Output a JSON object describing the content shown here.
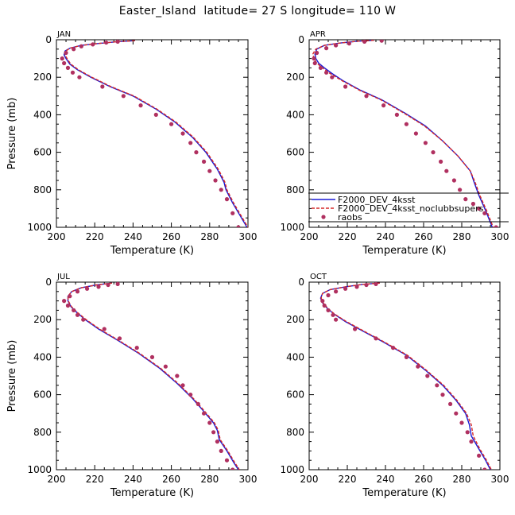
{
  "title": "Easter_Island  latitude= 27 S longitude= 110 W",
  "colors": {
    "series_solid": "#1a1ad6",
    "series_dashed": "#d62828",
    "series_points": "#b03060",
    "axes": "#000000"
  },
  "chart_data": [
    {
      "type": "line",
      "panel": "JAN",
      "xlabel": "Temperature (K)",
      "ylabel": "Pressure (mb)",
      "xlim": [
        200,
        300
      ],
      "ylim": [
        1000,
        0
      ],
      "xticks": [
        200,
        220,
        240,
        260,
        280,
        300
      ],
      "yticks": [
        0,
        200,
        400,
        600,
        800,
        1000
      ],
      "series": [
        {
          "name": "F2000_DEV_4ksst",
          "style": "solid",
          "x": [
            241,
            232,
            222,
            213,
            207,
            204.5,
            204,
            205,
            207,
            211,
            218,
            228,
            240,
            252,
            262,
            271,
            278,
            284,
            287.5,
            288.5,
            292,
            296,
            299.5
          ],
          "y": [
            5,
            10,
            20,
            30,
            45,
            60,
            80,
            100,
            130,
            160,
            200,
            250,
            300,
            370,
            440,
            520,
            600,
            690,
            760,
            800,
            870,
            940,
            1000
          ]
        },
        {
          "name": "F2000_DEV_4ksst_noclubbsupers",
          "style": "dashed",
          "x": [
            241,
            232,
            222,
            213,
            207,
            205,
            204.5,
            205.5,
            207.5,
            211.5,
            218.5,
            228.5,
            240.5,
            252.5,
            262.5,
            271.5,
            278.5,
            284.5,
            288,
            289,
            292.5,
            296.5,
            300
          ],
          "y": [
            5,
            10,
            20,
            30,
            45,
            60,
            80,
            100,
            130,
            160,
            200,
            250,
            300,
            370,
            440,
            520,
            600,
            690,
            760,
            800,
            870,
            940,
            1000
          ]
        },
        {
          "name": "raobs",
          "style": "points",
          "x": [
            232,
            226,
            219,
            213,
            209,
            205,
            203,
            204,
            206,
            208.5,
            212,
            224,
            235,
            244,
            252,
            260,
            266,
            270,
            273,
            277,
            280,
            283,
            286,
            289,
            292,
            295
          ],
          "y": [
            10,
            15,
            25,
            35,
            50,
            70,
            100,
            125,
            150,
            175,
            200,
            250,
            300,
            350,
            400,
            450,
            500,
            550,
            600,
            650,
            700,
            750,
            800,
            850,
            925,
            1000
          ]
        }
      ]
    },
    {
      "type": "line",
      "panel": "APR",
      "xlabel": "Temperature (K)",
      "ylabel": "",
      "xlim": [
        200,
        300
      ],
      "ylim": [
        1000,
        0
      ],
      "xticks": [
        200,
        220,
        240,
        260,
        280,
        300
      ],
      "yticks": [
        0,
        200,
        400,
        600,
        800,
        1000
      ],
      "legend": {
        "placement": "bottom-right",
        "entries": [
          "F2000_DEV_4ksst",
          "F2000_DEV_4ksst_noclubbsupers",
          "raobs"
        ]
      },
      "series": [
        {
          "name": "F2000_DEV_4ksst",
          "style": "solid",
          "x": [
            234,
            225,
            216,
            208,
            204,
            203,
            203.5,
            205,
            208,
            212,
            218,
            227,
            238,
            250,
            261,
            270,
            278,
            284.5,
            286.5,
            289,
            292.5,
            296
          ],
          "y": [
            3,
            8,
            18,
            30,
            50,
            75,
            100,
            125,
            150,
            180,
            220,
            270,
            320,
            390,
            460,
            540,
            620,
            700,
            760,
            830,
            910,
            1000
          ]
        },
        {
          "name": "F2000_DEV_4ksst_noclubbsupers",
          "style": "dashed",
          "x": [
            234,
            225,
            216,
            208,
            203.5,
            202,
            202.5,
            204,
            207,
            211,
            217.5,
            226.5,
            237.5,
            249.5,
            260.5,
            270,
            278,
            284.5,
            287,
            289.5,
            293,
            296.5
          ],
          "y": [
            3,
            8,
            18,
            30,
            50,
            75,
            100,
            125,
            150,
            180,
            220,
            270,
            320,
            390,
            460,
            540,
            620,
            700,
            760,
            830,
            910,
            1000
          ]
        },
        {
          "name": "raobs",
          "style": "points",
          "x": [
            238,
            229,
            221,
            214,
            209,
            204,
            202.5,
            203,
            206,
            209,
            212,
            219,
            230,
            239,
            246,
            251,
            256,
            261,
            265,
            269,
            272,
            276,
            279,
            282,
            286,
            289,
            292,
            298
          ],
          "y": [
            5,
            10,
            20,
            30,
            45,
            70,
            100,
            125,
            150,
            175,
            200,
            250,
            300,
            350,
            400,
            450,
            500,
            550,
            600,
            650,
            700,
            750,
            800,
            850,
            875,
            900,
            925,
            1000
          ]
        }
      ]
    },
    {
      "type": "line",
      "panel": "JUL",
      "xlabel": "Temperature (K)",
      "ylabel": "Pressure (mb)",
      "xlim": [
        200,
        300
      ],
      "ylim": [
        1000,
        0
      ],
      "xticks": [
        200,
        220,
        240,
        260,
        280,
        300
      ],
      "yticks": [
        0,
        200,
        400,
        600,
        800,
        1000
      ],
      "series": [
        {
          "name": "F2000_DEV_4ksst",
          "style": "solid",
          "x": [
            229,
            221,
            213,
            208,
            206,
            206,
            207.5,
            210.5,
            215,
            222,
            232,
            243,
            254,
            263,
            271,
            277,
            282,
            284,
            285,
            289,
            292.5,
            295
          ],
          "y": [
            5,
            15,
            30,
            50,
            75,
            100,
            130,
            160,
            200,
            250,
            310,
            380,
            460,
            540,
            620,
            690,
            750,
            790,
            840,
            900,
            960,
            1000
          ]
        },
        {
          "name": "F2000_DEV_4ksst_noclubbsupers",
          "style": "dashed",
          "x": [
            229,
            221,
            213,
            208,
            206,
            206.2,
            207.8,
            210.8,
            215.5,
            222.5,
            232.5,
            243.5,
            254.5,
            263.5,
            271.5,
            277.5,
            282.5,
            284.5,
            285.5,
            289.5,
            293,
            295.5
          ],
          "y": [
            5,
            15,
            30,
            50,
            75,
            100,
            130,
            160,
            200,
            250,
            310,
            380,
            460,
            540,
            620,
            690,
            750,
            790,
            840,
            900,
            960,
            1000
          ]
        },
        {
          "name": "raobs",
          "style": "points",
          "x": [
            232,
            227,
            222,
            216,
            211,
            207,
            204,
            206,
            209,
            211,
            214,
            225,
            233,
            242,
            250,
            257,
            263,
            266,
            270,
            274,
            277,
            280,
            282,
            284,
            286,
            289,
            292
          ],
          "y": [
            10,
            15,
            25,
            35,
            50,
            75,
            100,
            125,
            150,
            175,
            200,
            250,
            300,
            350,
            400,
            450,
            500,
            550,
            600,
            650,
            700,
            750,
            800,
            850,
            900,
            950,
            1000
          ]
        }
      ]
    },
    {
      "type": "line",
      "panel": "OCT",
      "xlabel": "Temperature (K)",
      "ylabel": "",
      "xlim": [
        200,
        300
      ],
      "ylim": [
        1000,
        0
      ],
      "xticks": [
        200,
        220,
        240,
        260,
        280,
        300
      ],
      "yticks": [
        0,
        200,
        400,
        600,
        800,
        1000
      ],
      "series": [
        {
          "name": "F2000_DEV_4ksst",
          "style": "solid",
          "x": [
            237,
            228,
            219,
            211,
            207,
            206,
            207,
            209.5,
            213,
            219,
            228,
            239,
            251,
            261,
            270,
            277,
            282,
            284,
            285,
            289,
            292.5,
            295
          ],
          "y": [
            5,
            12,
            25,
            40,
            60,
            85,
            110,
            140,
            170,
            210,
            260,
            320,
            390,
            470,
            550,
            630,
            700,
            760,
            820,
            890,
            950,
            1000
          ]
        },
        {
          "name": "F2000_DEV_4ksst_noclubbsupers",
          "style": "dashed",
          "x": [
            237,
            228,
            219,
            211,
            207,
            206.3,
            207.3,
            209.8,
            213.3,
            219.5,
            228.5,
            239.5,
            251.5,
            261.5,
            270.5,
            277.5,
            282.5,
            285,
            286,
            289.5,
            293,
            295.5
          ],
          "y": [
            5,
            12,
            25,
            40,
            60,
            85,
            110,
            140,
            170,
            210,
            260,
            320,
            390,
            470,
            550,
            630,
            700,
            760,
            820,
            890,
            950,
            1000
          ]
        },
        {
          "name": "raobs",
          "style": "points",
          "x": [
            235,
            230,
            225,
            219,
            214,
            210,
            207,
            208,
            210,
            212.5,
            214,
            224,
            235,
            244,
            251,
            257,
            262,
            267,
            270,
            274,
            277,
            280,
            283,
            285,
            289,
            292
          ],
          "y": [
            10,
            15,
            25,
            35,
            50,
            70,
            100,
            125,
            150,
            175,
            200,
            250,
            300,
            350,
            400,
            450,
            500,
            550,
            600,
            650,
            700,
            750,
            800,
            850,
            925,
            1000
          ]
        }
      ]
    }
  ]
}
